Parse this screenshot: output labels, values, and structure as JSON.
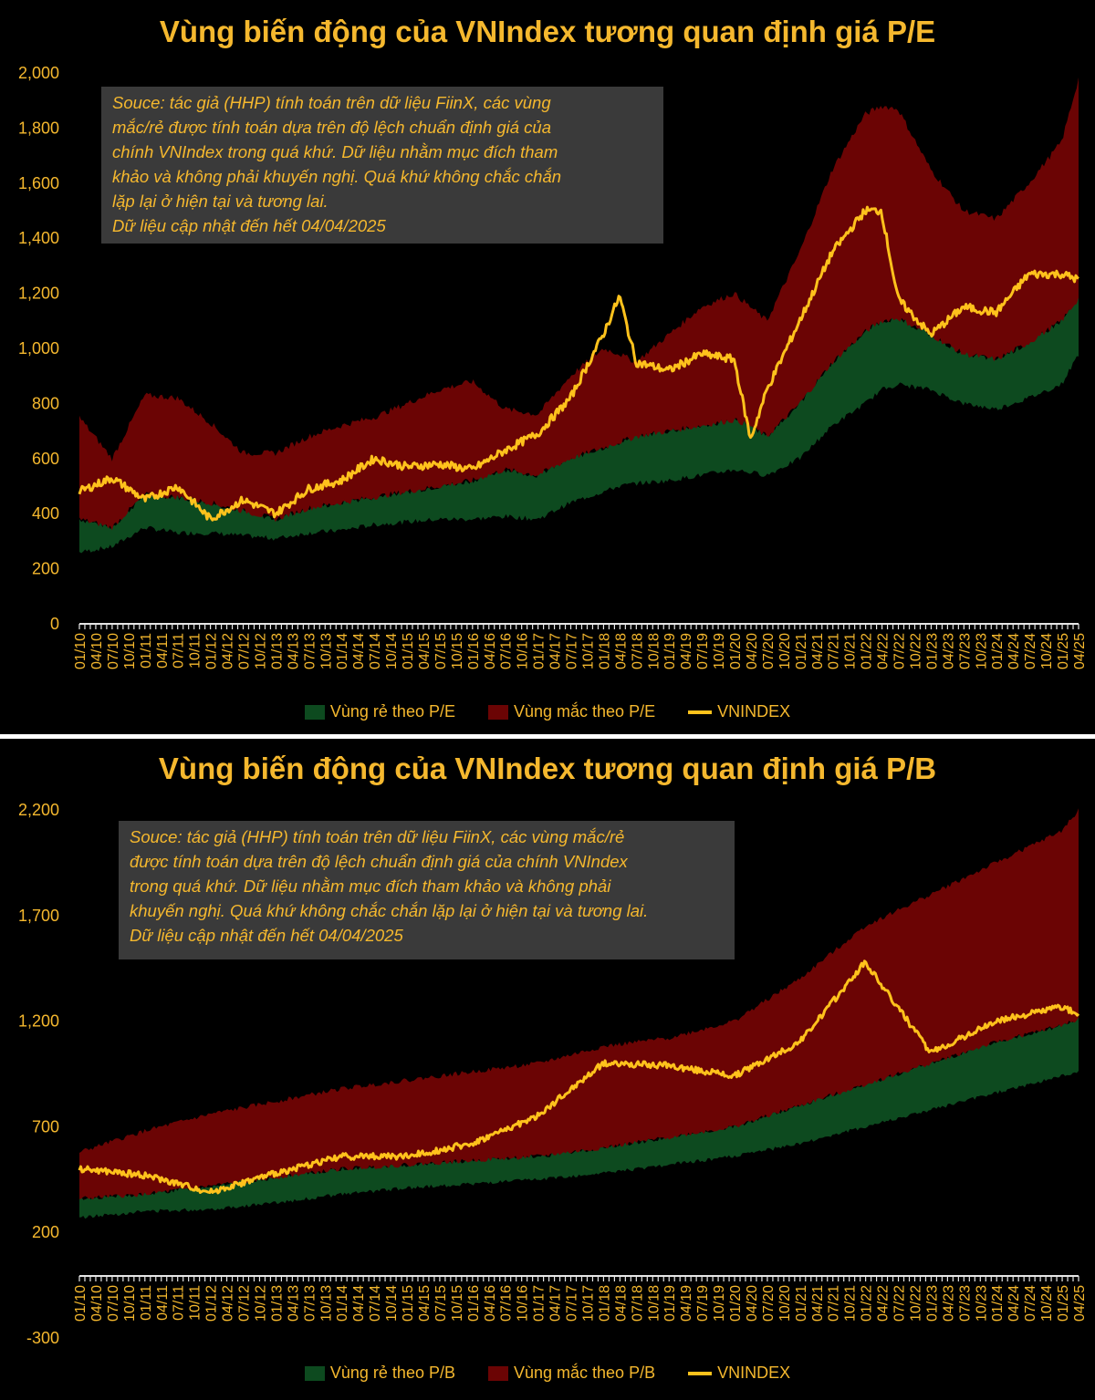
{
  "colors": {
    "accent": "#f5b82e",
    "cheap": "#0d4a1f",
    "expensive": "#6b0404",
    "index": "#ffc21c",
    "note_bg": "#3a3a3a"
  },
  "chart_data": [
    {
      "type": "area",
      "title": "Vùng biến động của VNIndex tương quan định giá P/E",
      "note": [
        "Souce: tác giả (HHP) tính toán trên dữ liệu FiinX, các vùng",
        "mắc/rẻ được tính toán dựa trên độ lệch chuẩn định giá của",
        "chính VNIndex trong quá khứ. Dữ liệu nhằm mục đích tham",
        "khảo và không phải khuyến nghị. Quá khứ không chắc chắn",
        "lặp lại ở hiện tại và tương lai.",
        "Dữ liệu cập nhật đến hết 04/04/2025"
      ],
      "ylim": [
        0,
        2000
      ],
      "yticks": [
        0,
        200,
        400,
        600,
        800,
        1000,
        1200,
        1400,
        1600,
        1800,
        2000
      ],
      "ytick_labels": [
        "0",
        "200",
        "400",
        "600",
        "800",
        "1,000",
        "1,200",
        "1,400",
        "1,600",
        "1,800",
        "2,000"
      ],
      "xticks": [
        "01/10",
        "04/10",
        "07/10",
        "10/10",
        "01/11",
        "04/11",
        "07/11",
        "10/11",
        "01/12",
        "04/12",
        "07/12",
        "10/12",
        "01/13",
        "04/13",
        "07/13",
        "10/13",
        "01/14",
        "04/14",
        "07/14",
        "10/14",
        "01/15",
        "04/15",
        "07/15",
        "10/15",
        "01/16",
        "04/16",
        "07/16",
        "10/16",
        "01/17",
        "04/17",
        "07/17",
        "10/17",
        "01/18",
        "04/18",
        "07/18",
        "10/18",
        "01/19",
        "04/19",
        "07/19",
        "10/19",
        "01/20",
        "04/20",
        "07/20",
        "10/20",
        "01/21",
        "04/21",
        "07/21",
        "10/21",
        "01/22",
        "04/22",
        "07/22",
        "10/22",
        "01/23",
        "04/23",
        "07/23",
        "10/23",
        "01/24",
        "04/24",
        "07/24",
        "10/24",
        "01/25",
        "04/25"
      ],
      "x_time": [
        2010.0,
        2010.5,
        2011.0,
        2011.5,
        2012.0,
        2012.5,
        2013.0,
        2013.5,
        2014.0,
        2014.5,
        2015.0,
        2015.5,
        2016.0,
        2016.5,
        2017.0,
        2017.5,
        2018.0,
        2018.25,
        2018.5,
        2019.0,
        2019.5,
        2020.0,
        2020.25,
        2020.5,
        2021.0,
        2021.5,
        2022.0,
        2022.25,
        2022.5,
        2023.0,
        2023.5,
        2024.0,
        2024.5,
        2025.0,
        2025.26
      ],
      "series": [
        {
          "name": "Vùng rẻ theo P/E",
          "lower": [
            260,
            280,
            350,
            330,
            330,
            320,
            310,
            330,
            340,
            360,
            370,
            380,
            380,
            390,
            380,
            440,
            480,
            500,
            510,
            520,
            540,
            560,
            550,
            540,
            600,
            720,
            800,
            850,
            870,
            850,
            800,
            780,
            820,
            870,
            980
          ],
          "upper": [
            380,
            350,
            470,
            460,
            440,
            410,
            380,
            420,
            440,
            460,
            480,
            500,
            520,
            560,
            540,
            600,
            640,
            660,
            680,
            700,
            720,
            740,
            720,
            680,
            800,
            950,
            1060,
            1100,
            1110,
            1050,
            980,
            960,
            1020,
            1100,
            1180
          ]
        },
        {
          "name": "Vùng mắc theo P/E",
          "lower": [
            380,
            350,
            470,
            460,
            440,
            410,
            380,
            420,
            440,
            460,
            480,
            500,
            520,
            560,
            540,
            600,
            640,
            660,
            680,
            700,
            720,
            740,
            720,
            680,
            800,
            950,
            1060,
            1100,
            1110,
            1050,
            980,
            960,
            1020,
            1100,
            1180
          ],
          "upper": [
            750,
            600,
            830,
            820,
            730,
            620,
            620,
            680,
            720,
            750,
            800,
            850,
            880,
            780,
            760,
            900,
            1000,
            980,
            950,
            1050,
            1150,
            1200,
            1150,
            1100,
            1350,
            1650,
            1850,
            1880,
            1870,
            1650,
            1500,
            1470,
            1600,
            1750,
            1980
          ]
        },
        {
          "name": "VNINDEX",
          "values": [
            480,
            530,
            450,
            500,
            380,
            450,
            400,
            490,
            520,
            600,
            570,
            580,
            560,
            630,
            690,
            820,
            1050,
            1190,
            950,
            920,
            980,
            960,
            670,
            850,
            1100,
            1350,
            1500,
            1500,
            1180,
            1050,
            1150,
            1130,
            1270,
            1270,
            1250
          ]
        }
      ],
      "legend": [
        "Vùng rẻ theo P/E",
        "Vùng mắc theo P/E",
        "VNINDEX"
      ]
    },
    {
      "type": "area",
      "title": "Vùng biến động của VNIndex tương quan định giá P/B",
      "note": [
        "Souce: tác giả (HHP) tính toán trên dữ liệu FiinX, các vùng mắc/rẻ",
        "được tính toán dựa trên độ lệch chuẩn định giá của chính VNIndex",
        "trong quá khứ. Dữ liệu nhằm mục đích tham khảo và không phải",
        "khuyến nghị. Quá khứ không chắc chắn lặp lại ở hiện tại và tương lai.",
        "Dữ liệu cập nhật đến hết 04/04/2025"
      ],
      "ylim": [
        -300,
        2200
      ],
      "yticks": [
        -300,
        200,
        700,
        1200,
        1700,
        2200
      ],
      "ytick_labels": [
        "-300",
        "200",
        "700",
        "1,200",
        "1,700",
        "2,200"
      ],
      "xticks": [
        "01/10",
        "04/10",
        "07/10",
        "10/10",
        "01/11",
        "04/11",
        "07/11",
        "10/11",
        "01/12",
        "04/12",
        "07/12",
        "10/12",
        "01/13",
        "04/13",
        "07/13",
        "10/13",
        "01/14",
        "04/14",
        "07/14",
        "10/14",
        "01/15",
        "04/15",
        "07/15",
        "10/15",
        "01/16",
        "04/16",
        "07/16",
        "10/16",
        "01/17",
        "04/17",
        "07/17",
        "10/17",
        "01/18",
        "04/18",
        "07/18",
        "10/18",
        "01/19",
        "04/19",
        "07/19",
        "10/19",
        "01/20",
        "04/20",
        "07/20",
        "10/20",
        "01/21",
        "04/21",
        "07/21",
        "10/21",
        "01/22",
        "04/22",
        "07/22",
        "10/22",
        "01/23",
        "04/23",
        "07/23",
        "10/23",
        "01/24",
        "04/24",
        "07/24",
        "10/24",
        "01/25",
        "04/25"
      ],
      "x_time": [
        2010.0,
        2011.0,
        2012.0,
        2013.0,
        2014.0,
        2015.0,
        2016.0,
        2017.0,
        2018.0,
        2019.0,
        2020.0,
        2021.0,
        2022.0,
        2023.0,
        2024.0,
        2025.0,
        2025.26
      ],
      "series": [
        {
          "name": "Vùng rẻ theo P/B",
          "lower": [
            270,
            300,
            310,
            340,
            380,
            410,
            430,
            450,
            480,
            520,
            560,
            620,
            700,
            780,
            860,
            940,
            960
          ],
          "upper": [
            360,
            380,
            420,
            460,
            500,
            520,
            540,
            560,
            600,
            650,
            700,
            800,
            900,
            1000,
            1100,
            1180,
            1210
          ]
        },
        {
          "name": "Vùng mắc theo P/B",
          "lower": [
            360,
            380,
            420,
            460,
            500,
            520,
            540,
            560,
            600,
            650,
            700,
            800,
            900,
            1000,
            1100,
            1180,
            1210
          ],
          "upper": [
            580,
            680,
            760,
            820,
            880,
            920,
            960,
            1000,
            1080,
            1120,
            1200,
            1400,
            1650,
            1800,
            1950,
            2100,
            2200
          ]
        },
        {
          "name": "VNINDEX",
          "values": [
            500,
            470,
            390,
            480,
            560,
            560,
            620,
            750,
            1000,
            990,
            940,
            1100,
            1480,
            1050,
            1200,
            1270,
            1230
          ]
        }
      ],
      "legend": [
        "Vùng rẻ theo P/B",
        "Vùng mắc theo P/B",
        "VNINDEX"
      ]
    }
  ]
}
